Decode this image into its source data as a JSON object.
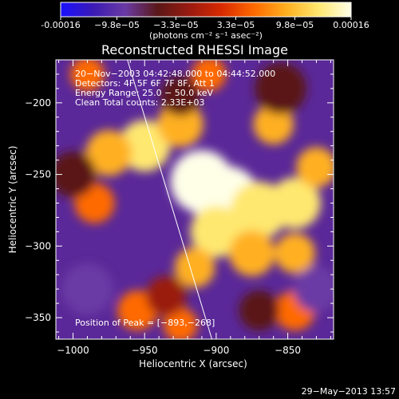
{
  "colorbar": {
    "tick_labels": [
      "-0.00016",
      "−9.8e−05",
      "−3.3e−05",
      "3.3e−05",
      "9.8e−05",
      "0.00016"
    ],
    "tick_values": [
      -0.00016,
      -9.8e-05,
      -3.3e-05,
      3.3e-05,
      9.8e-05,
      0.00016
    ],
    "units_label": "(photons cm⁻² s⁻¹ asec⁻²)",
    "colors": [
      "#1a10ff",
      "#3a1ab4",
      "#6a3aa4",
      "#5a1818",
      "#9a1a10",
      "#d82a00",
      "#ff6a00",
      "#ffb020",
      "#ffe870",
      "#ffffe8"
    ]
  },
  "chart_data": {
    "type": "heatmap",
    "title": "Reconstructed RHESSI Image",
    "xlabel": "Heliocentric X (arcsec)",
    "ylabel": "Heliocentric Y (arcsec)",
    "xlim": [
      -1012,
      -818
    ],
    "ylim": [
      -365,
      -170
    ],
    "x_ticks": [
      -1000,
      -950,
      -900,
      -850
    ],
    "y_ticks": [
      -200,
      -250,
      -300,
      -350
    ],
    "x_tick_labels": [
      "−1000",
      "−950",
      "−900",
      "−850"
    ],
    "y_tick_labels": [
      "−200",
      "−250",
      "−300",
      "−350"
    ],
    "annotations": [
      "20−Nov−2003 04:42:48.000 to 04:44:52.000",
      "Detectors: 4F 5F 6F 7F 8F, Att 1",
      "Energy Range: 25.0 − 50.0 keV",
      "Clean     Total counts: 2.33E+03"
    ],
    "peak_label": "Position of Peak = [−893,−268]",
    "peak_position": [
      -893,
      -268
    ],
    "limb_line": {
      "x": [
        -962,
        -903
      ],
      "y": [
        -170,
        -365
      ]
    },
    "blobs": [
      {
        "x": -950,
        "y": -230,
        "level": 0.75,
        "r": 18
      },
      {
        "x": -910,
        "y": -255,
        "level": 0.9,
        "r": 22
      },
      {
        "x": -893,
        "y": -268,
        "level": 1.0,
        "r": 24
      },
      {
        "x": -870,
        "y": -275,
        "level": 0.85,
        "r": 20
      },
      {
        "x": -845,
        "y": -270,
        "level": 0.75,
        "r": 18
      },
      {
        "x": -925,
        "y": -215,
        "level": 0.55,
        "r": 16
      },
      {
        "x": -975,
        "y": -235,
        "level": 0.6,
        "r": 16
      },
      {
        "x": -900,
        "y": -290,
        "level": 0.8,
        "r": 18
      },
      {
        "x": -915,
        "y": -315,
        "level": 0.6,
        "r": 14
      },
      {
        "x": -875,
        "y": -305,
        "level": 0.65,
        "r": 16
      },
      {
        "x": -845,
        "y": -305,
        "level": 0.55,
        "r": 14
      },
      {
        "x": -830,
        "y": -245,
        "level": 0.55,
        "r": 14
      },
      {
        "x": -860,
        "y": -215,
        "level": 0.45,
        "r": 14
      },
      {
        "x": -985,
        "y": -270,
        "level": 0.35,
        "r": 14
      },
      {
        "x": -955,
        "y": -345,
        "level": 0.35,
        "r": 14
      },
      {
        "x": -925,
        "y": -355,
        "level": 0.3,
        "r": 12
      },
      {
        "x": -845,
        "y": -345,
        "level": 0.4,
        "r": 14
      },
      {
        "x": -990,
        "y": -180,
        "level": 0.25,
        "r": 12
      },
      {
        "x": -905,
        "y": -180,
        "level": 0.35,
        "r": 12
      },
      {
        "x": -990,
        "y": -330,
        "level": -0.5,
        "r": 18
      },
      {
        "x": -1000,
        "y": -250,
        "level": -0.35,
        "r": 16
      },
      {
        "x": -855,
        "y": -190,
        "level": -0.4,
        "r": 18
      },
      {
        "x": -830,
        "y": -330,
        "level": -0.5,
        "r": 16
      },
      {
        "x": -935,
        "y": -335,
        "level": -0.2,
        "r": 14
      },
      {
        "x": -870,
        "y": -345,
        "level": -0.35,
        "r": 14
      },
      {
        "x": -925,
        "y": -195,
        "level": -0.3,
        "r": 14
      }
    ]
  },
  "footer": {
    "timestamp": "29−May−2013 13:57"
  }
}
